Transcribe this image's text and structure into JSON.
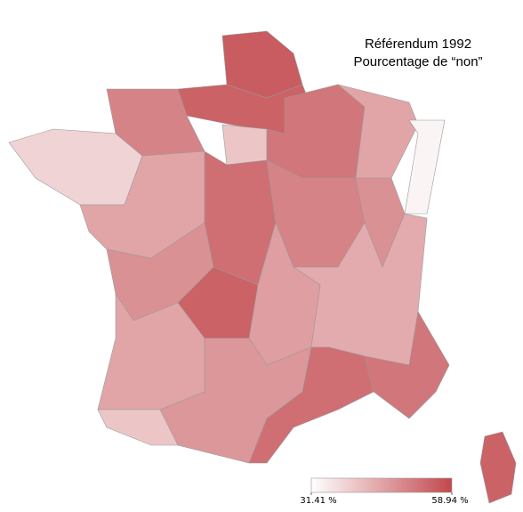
{
  "chart_data": {
    "type": "choropleth",
    "title": "Référendum 1992",
    "subtitle": "Pourcentage de “non”",
    "values": [
      56,
      55,
      50,
      38,
      40,
      52,
      45,
      33,
      45,
      53,
      50,
      48,
      48,
      55,
      46,
      44,
      45,
      47,
      53,
      52,
      55,
      40
    ],
    "color_low": "#ffffff",
    "color_high": "#c2484d",
    "clim": [
      31.41,
      58.94
    ],
    "cticks": [
      {
        "value": 31.41,
        "label": "31.41 %"
      },
      {
        "value": 58.94,
        "label": "58.94 %"
      }
    ]
  }
}
